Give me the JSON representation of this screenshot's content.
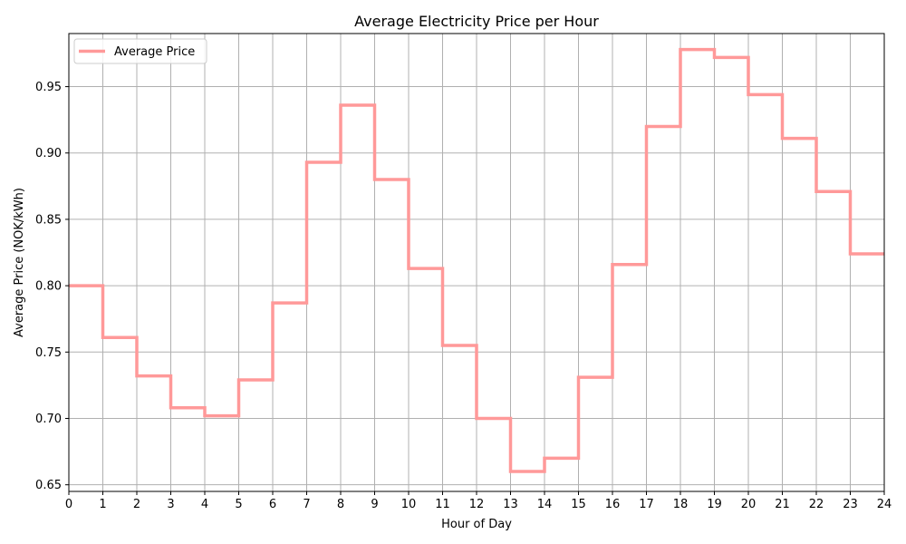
{
  "chart_data": {
    "type": "line",
    "step": "post",
    "title": "Average Electricity Price per Hour",
    "xlabel": "Hour of Day",
    "ylabel": "Average Price (NOK/kWh)",
    "xlim": [
      0,
      24
    ],
    "ylim": [
      0.645,
      0.99
    ],
    "xticks": [
      0,
      1,
      2,
      3,
      4,
      5,
      6,
      7,
      8,
      9,
      10,
      11,
      12,
      13,
      14,
      15,
      16,
      17,
      18,
      19,
      20,
      21,
      22,
      23,
      24
    ],
    "yticks": [
      0.65,
      0.7,
      0.75,
      0.8,
      0.85,
      0.9,
      0.95
    ],
    "ytick_labels": [
      "0.65",
      "0.70",
      "0.75",
      "0.80",
      "0.85",
      "0.90",
      "0.95"
    ],
    "grid": true,
    "legend_position": "top-left",
    "series": [
      {
        "name": "Average Price",
        "color": "#ff9999",
        "x": [
          0,
          1,
          2,
          3,
          4,
          5,
          6,
          7,
          8,
          9,
          10,
          11,
          12,
          13,
          14,
          15,
          16,
          17,
          18,
          19,
          20,
          21,
          22,
          23
        ],
        "values": [
          0.8,
          0.761,
          0.732,
          0.708,
          0.702,
          0.729,
          0.787,
          0.893,
          0.936,
          0.88,
          0.813,
          0.755,
          0.7,
          0.66,
          0.67,
          0.731,
          0.816,
          0.92,
          0.978,
          0.972,
          0.944,
          0.911,
          0.871,
          0.824
        ]
      }
    ]
  }
}
